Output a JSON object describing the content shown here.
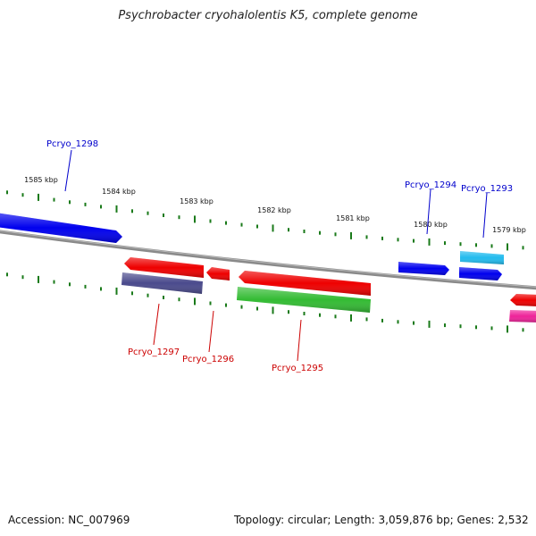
{
  "title": "Psychrobacter cryohalolentis K5, complete genome",
  "footer": {
    "accession": "Accession: NC_007969",
    "summary": "Topology: circular; Length: 3,059,876 bp; Genes: 2,532"
  },
  "ticks": [
    "1585 kbp",
    "1584 kbp",
    "1583 kbp",
    "1582 kbp",
    "1581 kbp",
    "1580 kbp",
    "1579 kbp"
  ],
  "genes": [
    {
      "name": "Pcryo_1298",
      "strand": "forward",
      "color": "#0000ee"
    },
    {
      "name": "Pcryo_1297",
      "strand": "reverse",
      "color": "#4a4a8c"
    },
    {
      "name": "Pcryo_1296",
      "strand": "reverse",
      "color": "#ee0000"
    },
    {
      "name": "Pcryo_1295",
      "strand": "reverse",
      "color": "#33bb33"
    },
    {
      "name": "Pcryo_1294",
      "strand": "forward",
      "color": "#0000ee"
    },
    {
      "name": "Pcryo_1293",
      "strand": "forward",
      "color": "#22bbee"
    }
  ],
  "colors": {
    "forward_label": "#0000cc",
    "reverse_label": "#cc0000",
    "backbone": "#8a8a8a",
    "tick": "#1a7a1a",
    "pink_feature": "#ee2299"
  }
}
